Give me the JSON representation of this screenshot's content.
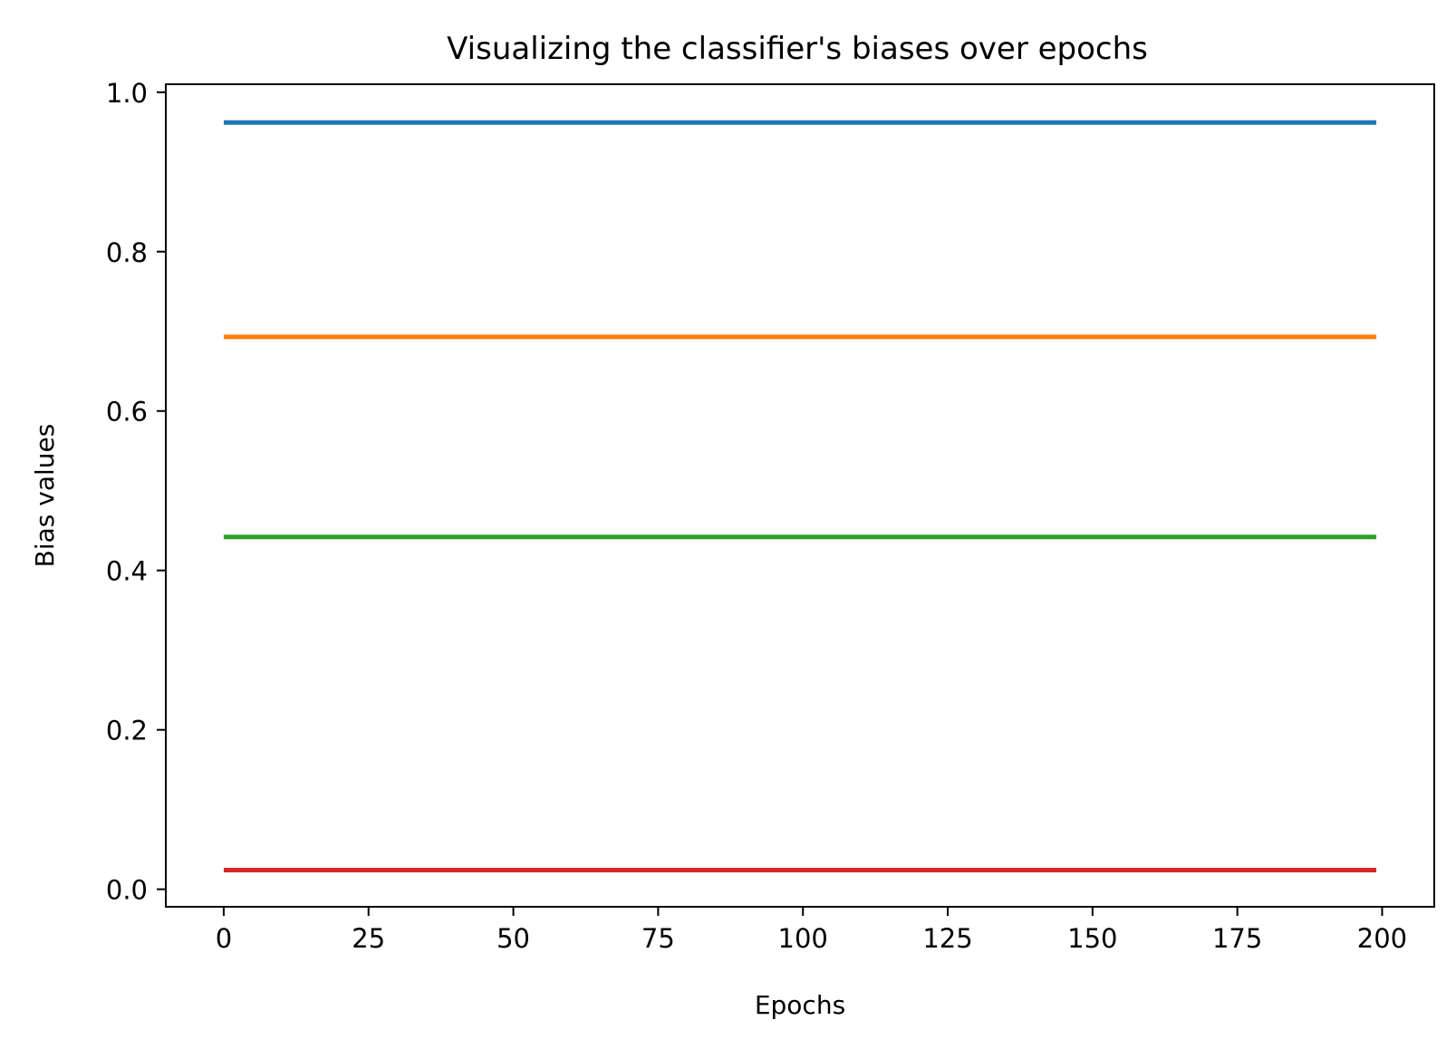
{
  "chart_data": {
    "type": "line",
    "title": "Visualizing the classifier's biases over epochs",
    "xlabel": "Epochs",
    "ylabel": "Bias values",
    "xlim": [
      -10,
      209
    ],
    "ylim": [
      -0.022,
      1.01
    ],
    "xticks": [
      0,
      25,
      50,
      75,
      100,
      125,
      150,
      175,
      200
    ],
    "yticks": [
      0.0,
      0.2,
      0.4,
      0.6,
      0.8,
      1.0
    ],
    "xtick_labels": [
      "0",
      "25",
      "50",
      "75",
      "100",
      "125",
      "150",
      "175",
      "200"
    ],
    "ytick_labels": [
      "0.0",
      "0.2",
      "0.4",
      "0.6",
      "0.8",
      "1.0"
    ],
    "grid": false,
    "legend": false,
    "x": [
      0,
      199
    ],
    "series": [
      {
        "values": [
          0.962,
          0.962
        ],
        "color": "#1f77b4"
      },
      {
        "values": [
          0.693,
          0.693
        ],
        "color": "#ff7f0e"
      },
      {
        "values": [
          0.442,
          0.442
        ],
        "color": "#2ca02c"
      },
      {
        "values": [
          0.024,
          0.024
        ],
        "color": "#d62728"
      }
    ]
  }
}
